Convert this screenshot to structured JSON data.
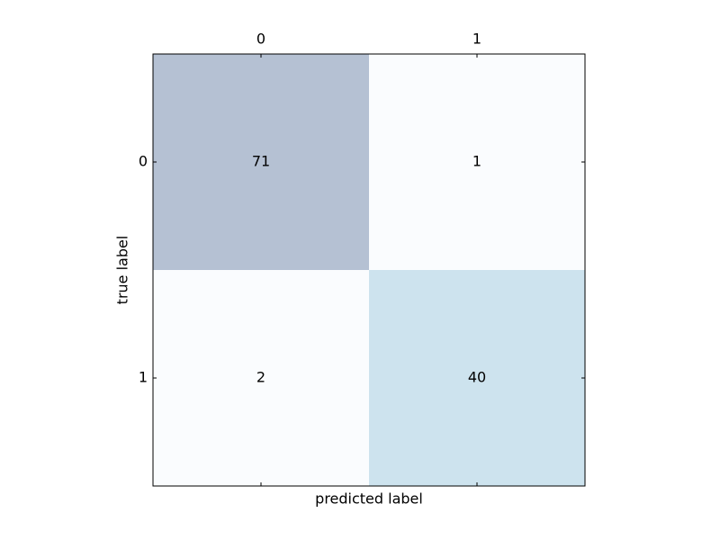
{
  "chart_data": {
    "type": "heatmap",
    "x_categories": [
      "0",
      "1"
    ],
    "y_categories": [
      "0",
      "1"
    ],
    "values": [
      [
        71,
        1
      ],
      [
        2,
        40
      ]
    ],
    "colors": [
      [
        "#b5c1d3",
        "#fafcfe"
      ],
      [
        "#fafcfe",
        "#cde3ee"
      ]
    ],
    "xlabel": "predicted label",
    "ylabel": "true label",
    "x_tick_position": "top"
  }
}
